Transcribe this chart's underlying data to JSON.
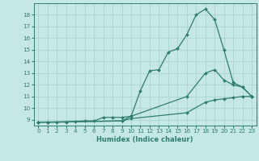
{
  "xlabel": "Humidex (Indice chaleur)",
  "bg_color": "#c5e8e5",
  "grid_color": "#aad4d0",
  "line_color": "#2e7d6e",
  "xlim": [
    -0.5,
    23.5
  ],
  "ylim": [
    8.5,
    19.0
  ],
  "yticks": [
    9,
    10,
    11,
    12,
    13,
    14,
    15,
    16,
    17,
    18
  ],
  "xticks": [
    0,
    1,
    2,
    3,
    4,
    5,
    6,
    7,
    8,
    9,
    10,
    11,
    12,
    13,
    14,
    15,
    16,
    17,
    18,
    19,
    20,
    21,
    22,
    23
  ],
  "line1_x": [
    0,
    1,
    2,
    3,
    4,
    5,
    6,
    7,
    8,
    9,
    10,
    11,
    12,
    13,
    14,
    15,
    16,
    17,
    18,
    19,
    20,
    21,
    22,
    23
  ],
  "line1_y": [
    8.8,
    8.8,
    8.8,
    8.8,
    8.85,
    8.9,
    8.9,
    9.2,
    9.2,
    9.2,
    9.3,
    11.5,
    13.2,
    13.3,
    14.8,
    15.1,
    16.3,
    18.0,
    18.5,
    17.6,
    15.0,
    12.2,
    11.8,
    11.0
  ],
  "line2_x": [
    0,
    1,
    9,
    10,
    16,
    18,
    19,
    20,
    21,
    22,
    23
  ],
  "line2_y": [
    8.8,
    8.8,
    8.9,
    9.3,
    11.0,
    13.0,
    13.3,
    12.4,
    12.0,
    11.8,
    11.0
  ],
  "line3_x": [
    0,
    1,
    9,
    10,
    16,
    18,
    19,
    20,
    21,
    22,
    23
  ],
  "line3_y": [
    8.8,
    8.8,
    8.9,
    9.1,
    9.6,
    10.5,
    10.7,
    10.8,
    10.9,
    11.0,
    11.0
  ]
}
